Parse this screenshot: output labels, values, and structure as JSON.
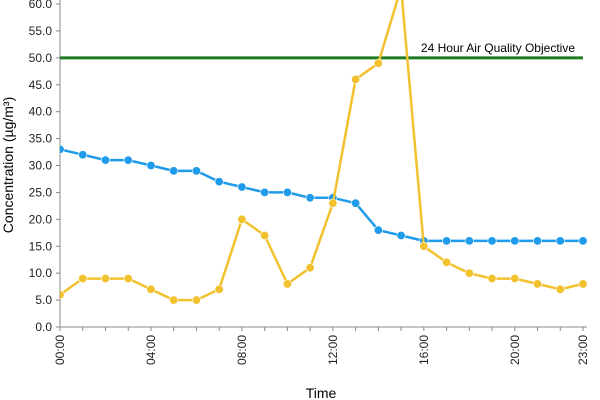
{
  "chart_data": {
    "type": "line",
    "xlabel": "Time",
    "ylabel": "Concentration (µg/m³)",
    "ylim": [
      0,
      60
    ],
    "y_ticks": [
      "0.0",
      "5.0",
      "10.0",
      "15.0",
      "20.0",
      "25.0",
      "30.0",
      "35.0",
      "40.0",
      "45.0",
      "50.0",
      "55.0",
      "60.0"
    ],
    "x_tick_labels": [
      "00:00",
      "04:00",
      "08:00",
      "12:00",
      "16:00",
      "20:00",
      "23:00"
    ],
    "x": [
      0,
      1,
      2,
      3,
      4,
      5,
      6,
      7,
      8,
      9,
      10,
      11,
      12,
      13,
      14,
      15,
      16,
      17,
      18,
      19,
      20,
      21,
      22,
      23
    ],
    "series": [
      {
        "color": "#1E9BEA",
        "values": [
          33,
          32,
          31,
          31,
          30,
          29,
          29,
          27,
          26,
          25,
          25,
          24,
          24,
          23,
          18,
          17,
          16,
          16,
          16,
          16,
          16,
          16,
          16,
          16
        ]
      },
      {
        "color": "#F2C12E",
        "values": [
          6,
          9,
          9,
          9,
          7,
          5,
          5,
          7,
          20,
          17,
          8,
          11,
          23,
          46,
          49,
          63,
          15,
          12,
          10,
          9,
          9,
          8,
          7,
          8
        ]
      }
    ],
    "reference_line": {
      "label": "24 Hour Air Quality Objective",
      "value": 50,
      "color": "#1E7A1E"
    },
    "grid": false,
    "legend": "none"
  }
}
